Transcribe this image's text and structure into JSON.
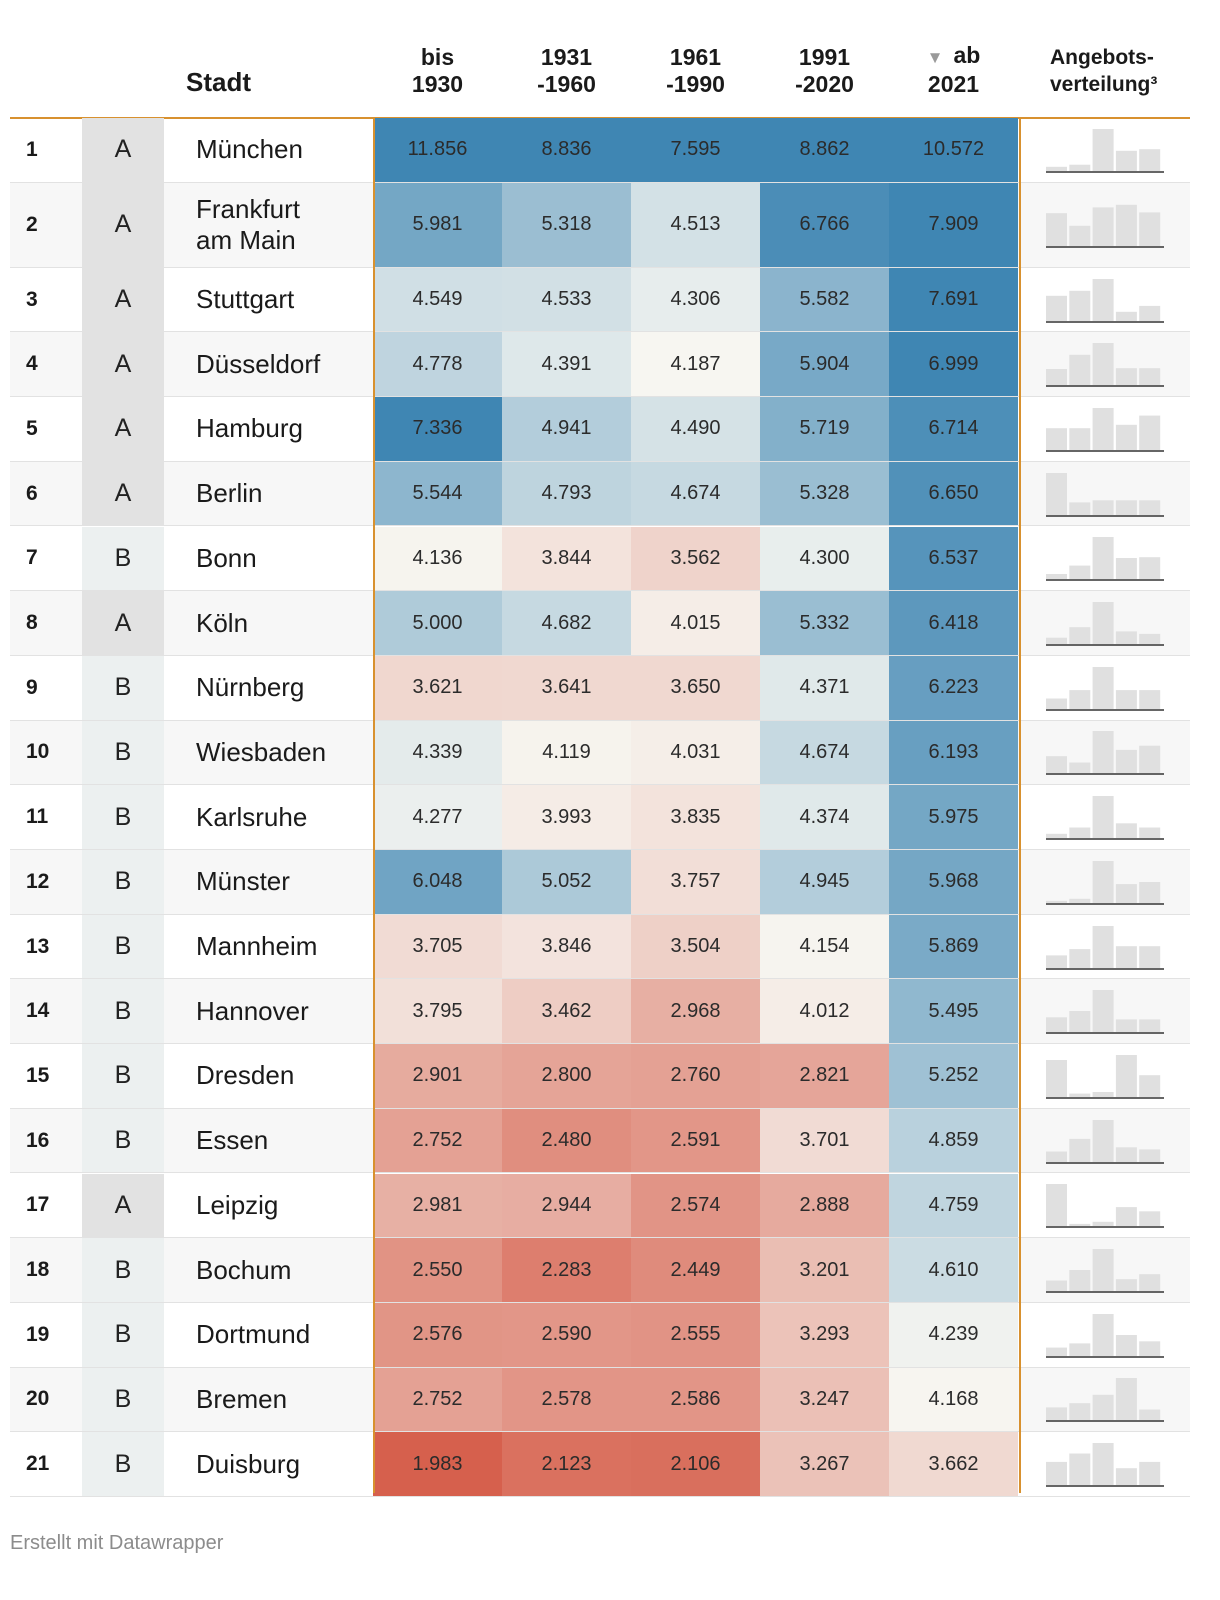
{
  "header": {
    "rank_label": "",
    "class_label": "",
    "city_label": "Stadt",
    "columns": [
      {
        "line1": "bis",
        "line2": "1930"
      },
      {
        "line1": "1931",
        "line2": "-1960"
      },
      {
        "line1": "1961",
        "line2": "-1990"
      },
      {
        "line1": "1991",
        "line2": "-2020"
      },
      {
        "line1": "ab",
        "line2": "2021",
        "sort_icon": "▼"
      }
    ],
    "distribution": {
      "line1": "Angebots-",
      "line2": "verteilung³"
    }
  },
  "chart_data": {
    "type": "table",
    "title": "",
    "sorted_by": "ab 2021",
    "columns": [
      "bis 1930",
      "1931 -1960",
      "1961 -1990",
      "1991 -2020",
      "ab 2021"
    ],
    "rows": [
      {
        "rank": "1",
        "class": "A",
        "city": "München",
        "values": [
          "11.856",
          "8.836",
          "7.595",
          "8.862",
          "10.572"
        ],
        "distribution": [
          0.1,
          0.15,
          1.0,
          0.48,
          0.52
        ]
      },
      {
        "rank": "2",
        "class": "A",
        "city": "Frankfurt am Main",
        "values": [
          "5.981",
          "5.318",
          "4.513",
          "6.766",
          "7.909"
        ],
        "distribution": [
          0.78,
          0.48,
          0.92,
          0.98,
          0.8
        ]
      },
      {
        "rank": "3",
        "class": "A",
        "city": "Stuttgart",
        "values": [
          "4.549",
          "4.533",
          "4.306",
          "5.582",
          "7.691"
        ],
        "distribution": [
          0.6,
          0.72,
          1.0,
          0.22,
          0.36
        ]
      },
      {
        "rank": "4",
        "class": "A",
        "city": "Düsseldorf",
        "values": [
          "4.778",
          "4.391",
          "4.187",
          "5.904",
          "6.999"
        ],
        "distribution": [
          0.38,
          0.72,
          1.0,
          0.4,
          0.4
        ]
      },
      {
        "rank": "5",
        "class": "A",
        "city": "Hamburg",
        "values": [
          "7.336",
          "4.941",
          "4.490",
          "5.719",
          "6.714"
        ],
        "distribution": [
          0.52,
          0.52,
          1.0,
          0.6,
          0.82
        ]
      },
      {
        "rank": "6",
        "class": "A",
        "city": "Berlin",
        "values": [
          "5.544",
          "4.793",
          "4.674",
          "5.328",
          "6.650"
        ],
        "distribution": [
          1.0,
          0.3,
          0.35,
          0.35,
          0.35
        ]
      },
      {
        "rank": "7",
        "class": "B",
        "city": "Bonn",
        "values": [
          "4.136",
          "3.844",
          "3.562",
          "4.300",
          "6.537"
        ],
        "distribution": [
          0.12,
          0.32,
          1.0,
          0.5,
          0.52
        ]
      },
      {
        "rank": "8",
        "class": "A",
        "city": "Köln",
        "values": [
          "5.000",
          "4.682",
          "4.015",
          "5.332",
          "6.418"
        ],
        "distribution": [
          0.15,
          0.4,
          1.0,
          0.3,
          0.24
        ]
      },
      {
        "rank": "9",
        "class": "B",
        "city": "Nürnberg",
        "values": [
          "3.621",
          "3.641",
          "3.650",
          "4.371",
          "6.223"
        ],
        "distribution": [
          0.25,
          0.45,
          1.0,
          0.45,
          0.45
        ]
      },
      {
        "rank": "10",
        "class": "B",
        "city": "Wiesbaden",
        "values": [
          "4.339",
          "4.119",
          "4.031",
          "4.674",
          "6.193"
        ],
        "distribution": [
          0.4,
          0.25,
          1.0,
          0.55,
          0.65
        ]
      },
      {
        "rank": "11",
        "class": "B",
        "city": "Karlsruhe",
        "values": [
          "4.277",
          "3.993",
          "3.835",
          "4.374",
          "5.975"
        ],
        "distribution": [
          0.1,
          0.25,
          1.0,
          0.35,
          0.25
        ]
      },
      {
        "rank": "12",
        "class": "B",
        "city": "Münster",
        "values": [
          "6.048",
          "5.052",
          "3.757",
          "4.945",
          "5.968"
        ],
        "distribution": [
          0.05,
          0.1,
          1.0,
          0.45,
          0.5
        ]
      },
      {
        "rank": "13",
        "class": "B",
        "city": "Mannheim",
        "values": [
          "3.705",
          "3.846",
          "3.504",
          "4.154",
          "5.869"
        ],
        "distribution": [
          0.3,
          0.45,
          1.0,
          0.52,
          0.52
        ]
      },
      {
        "rank": "14",
        "class": "B",
        "city": "Hannover",
        "values": [
          "3.795",
          "3.462",
          "2.968",
          "4.012",
          "5.495"
        ],
        "distribution": [
          0.35,
          0.5,
          1.0,
          0.3,
          0.3
        ]
      },
      {
        "rank": "15",
        "class": "B",
        "city": "Dresden",
        "values": [
          "2.901",
          "2.800",
          "2.760",
          "2.821",
          "5.252"
        ],
        "distribution": [
          0.88,
          0.08,
          0.12,
          1.0,
          0.52
        ]
      },
      {
        "rank": "16",
        "class": "B",
        "city": "Essen",
        "values": [
          "2.752",
          "2.480",
          "2.591",
          "3.701",
          "4.859"
        ],
        "distribution": [
          0.25,
          0.55,
          1.0,
          0.35,
          0.3
        ]
      },
      {
        "rank": "17",
        "class": "A",
        "city": "Leipzig",
        "values": [
          "2.981",
          "2.944",
          "2.574",
          "2.888",
          "4.759"
        ],
        "distribution": [
          1.0,
          0.05,
          0.1,
          0.45,
          0.35
        ]
      },
      {
        "rank": "18",
        "class": "B",
        "city": "Bochum",
        "values": [
          "2.550",
          "2.283",
          "2.449",
          "3.201",
          "4.610"
        ],
        "distribution": [
          0.25,
          0.5,
          1.0,
          0.28,
          0.4
        ]
      },
      {
        "rank": "19",
        "class": "B",
        "city": "Dortmund",
        "values": [
          "2.576",
          "2.590",
          "2.555",
          "3.293",
          "4.239"
        ],
        "distribution": [
          0.2,
          0.3,
          1.0,
          0.5,
          0.35
        ]
      },
      {
        "rank": "20",
        "class": "B",
        "city": "Bremen",
        "values": [
          "2.752",
          "2.578",
          "2.586",
          "3.247",
          "4.168"
        ],
        "distribution": [
          0.3,
          0.4,
          0.6,
          1.0,
          0.25
        ]
      },
      {
        "rank": "21",
        "class": "B",
        "city": "Duisburg",
        "values": [
          "1.983",
          "2.123",
          "2.106",
          "3.267",
          "3.662"
        ],
        "distribution": [
          0.55,
          0.75,
          1.0,
          0.4,
          0.55
        ]
      }
    ],
    "color_scale": {
      "low": "#d6604d",
      "mid": "#f7f7f2",
      "high": "#3f86b3",
      "domain": [
        1983,
        4200,
        11856
      ]
    },
    "class_colors": {
      "A": "#e2e2e2",
      "B": "#ecf0f0"
    },
    "bar_color": "#e0e0e0",
    "baseline_color": "#333333"
  },
  "footer": {
    "credit": "Erstellt mit Datawrapper"
  }
}
